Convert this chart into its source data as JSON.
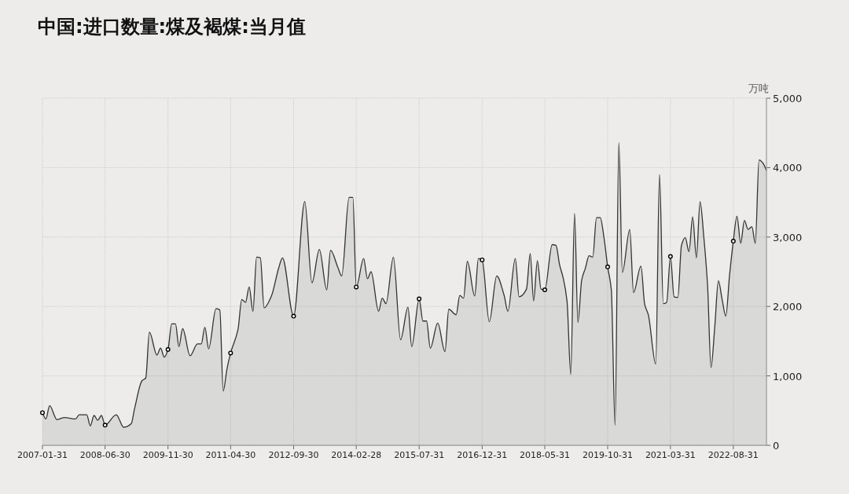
{
  "chart_data": {
    "type": "area",
    "title": "中国:进口数量:煤及褐煤:当月值",
    "ylabel": "万吨",
    "grid": true,
    "xlim": [
      "2007-01-31",
      "2023-05-31"
    ],
    "xticks": [
      "2007-01-31",
      "2008-06-30",
      "2009-11-30",
      "2011-04-30",
      "2012-09-30",
      "2014-02-28",
      "2015-07-31",
      "2016-12-31",
      "2018-05-31",
      "2019-10-31",
      "2021-03-31",
      "2022-08-31"
    ],
    "ylim": [
      0,
      5000
    ],
    "yticks": [
      0,
      {
        "value": 1000,
        "label": "1,000"
      },
      {
        "value": 2000,
        "label": "2,000"
      },
      {
        "value": 3000,
        "label": "3,000"
      },
      {
        "value": 4000,
        "label": "4,000"
      },
      {
        "value": 5000,
        "label": "5,000"
      }
    ],
    "x": [
      "2007-01-31",
      "2007-02-28",
      "2007-03-31",
      "2007-05-31",
      "2007-07-31",
      "2007-10-31",
      "2007-11-30",
      "2008-01-31",
      "2008-02-29",
      "2008-03-31",
      "2008-04-30",
      "2008-05-31",
      "2008-06-30",
      "2008-09-30",
      "2008-11-30",
      "2009-01-31",
      "2009-02-28",
      "2009-04-30",
      "2009-05-31",
      "2009-06-30",
      "2009-08-31",
      "2009-09-30",
      "2009-10-31",
      "2009-11-30",
      "2009-12-31",
      "2010-01-31",
      "2010-02-28",
      "2010-03-31",
      "2010-05-31",
      "2010-07-31",
      "2010-08-31",
      "2010-09-30",
      "2010-10-31",
      "2010-12-31",
      "2011-01-31",
      "2011-02-28",
      "2011-03-31",
      "2011-04-30",
      "2011-06-30",
      "2011-07-31",
      "2011-08-31",
      "2011-09-30",
      "2011-10-31",
      "2011-11-30",
      "2011-12-31",
      "2012-01-31",
      "2012-03-31",
      "2012-05-31",
      "2012-06-30",
      "2012-09-30",
      "2012-12-31",
      "2013-02-28",
      "2013-04-30",
      "2013-06-30",
      "2013-07-31",
      "2013-09-30",
      "2013-10-31",
      "2013-12-31",
      "2014-01-31",
      "2014-02-28",
      "2014-04-30",
      "2014-05-31",
      "2014-06-30",
      "2014-08-31",
      "2014-09-30",
      "2014-10-31",
      "2014-12-31",
      "2015-02-28",
      "2015-04-30",
      "2015-05-31",
      "2015-07-31",
      "2015-08-31",
      "2015-09-30",
      "2015-10-31",
      "2015-12-31",
      "2016-02-29",
      "2016-03-31",
      "2016-05-31",
      "2016-06-30",
      "2016-07-31",
      "2016-08-31",
      "2016-10-31",
      "2016-11-30",
      "2016-12-31",
      "2017-02-28",
      "2017-04-30",
      "2017-06-30",
      "2017-07-31",
      "2017-09-30",
      "2017-10-31",
      "2017-12-31",
      "2018-01-31",
      "2018-02-28",
      "2018-03-31",
      "2018-04-30",
      "2018-05-31",
      "2018-07-31",
      "2018-08-31",
      "2018-09-30",
      "2018-10-31",
      "2018-11-30",
      "2018-12-31",
      "2019-01-31",
      "2019-02-28",
      "2019-03-31",
      "2019-04-30",
      "2019-05-31",
      "2019-06-30",
      "2019-07-31",
      "2019-08-31",
      "2019-09-30",
      "2019-10-31",
      "2019-11-30",
      "2019-12-31",
      "2020-01-31",
      "2020-02-29",
      "2020-04-30",
      "2020-05-31",
      "2020-07-31",
      "2020-08-31",
      "2020-09-30",
      "2020-11-30",
      "2020-12-31",
      "2021-01-31",
      "2021-02-28",
      "2021-03-31",
      "2021-04-30",
      "2021-05-31",
      "2021-06-30",
      "2021-07-31",
      "2021-08-31",
      "2021-09-30",
      "2021-10-31",
      "2021-11-30",
      "2021-12-31",
      "2022-01-31",
      "2022-02-28",
      "2022-03-31",
      "2022-04-30",
      "2022-05-31",
      "2022-06-30",
      "2022-07-31",
      "2022-08-31",
      "2022-09-30",
      "2022-10-31",
      "2022-11-30",
      "2022-12-31",
      "2023-01-31",
      "2023-02-28",
      "2023-03-31",
      "2023-04-30",
      "2023-05-31"
    ],
    "series": [
      {
        "color": "#333333",
        "values": [
          470,
          380,
          570,
          370,
          400,
          380,
          440,
          440,
          280,
          430,
          360,
          430,
          290,
          440,
          260,
          310,
          530,
          930,
          970,
          1630,
          1300,
          1400,
          1270,
          1380,
          1750,
          1750,
          1420,
          1680,
          1290,
          1460,
          1460,
          1700,
          1390,
          1970,
          1950,
          780,
          1100,
          1330,
          1670,
          2100,
          2060,
          2280,
          1930,
          2710,
          2700,
          1980,
          2150,
          2560,
          2700,
          1860,
          3510,
          2340,
          2820,
          2240,
          2810,
          2560,
          2440,
          3570,
          3570,
          2280,
          2690,
          2400,
          2500,
          1930,
          2120,
          2040,
          2710,
          1520,
          1990,
          1420,
          2110,
          1790,
          1790,
          1400,
          1760,
          1350,
          1960,
          1880,
          2160,
          2120,
          2650,
          2150,
          2690,
          2670,
          1780,
          2440,
          2160,
          1930,
          2690,
          2140,
          2250,
          2760,
          2080,
          2660,
          2250,
          2240,
          2890,
          2880,
          2600,
          2400,
          2080,
          1020,
          3340,
          1770,
          2380,
          2550,
          2730,
          2710,
          3280,
          3280,
          3000,
          2570,
          2240,
          290,
          4360,
          2490,
          3110,
          2200,
          2580,
          2030,
          1880,
          1170,
          3900,
          2040,
          2060,
          2720,
          2140,
          2130,
          2880,
          2990,
          2790,
          3290,
          2700,
          3510,
          3000,
          2300,
          1120,
          1700,
          2370,
          2100,
          1860,
          2450,
          2940,
          3300,
          2910,
          3240,
          3110,
          3150,
          2910,
          4110,
          4070,
          3960
        ]
      },
      {
        "type": "scatter",
        "marker": "circle",
        "color": "#000000",
        "x": [
          "2007-01-31",
          "2008-06-30",
          "2009-11-30",
          "2011-04-30",
          "2012-09-30",
          "2014-02-28",
          "2015-07-31",
          "2016-12-31",
          "2018-05-31",
          "2019-10-31",
          "2021-03-31",
          "2022-08-31"
        ],
        "values": [
          470,
          290,
          1380,
          1330,
          1860,
          2280,
          2110,
          2670,
          2240,
          2570,
          2720,
          2940
        ]
      }
    ]
  }
}
